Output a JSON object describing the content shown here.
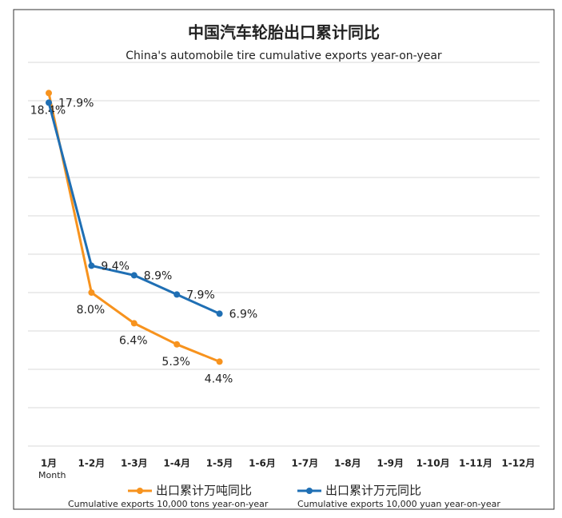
{
  "chart_data": {
    "type": "line",
    "title": "中国汽车轮胎出口累计同比",
    "subtitle": "China's automobile tire cumulative exports year-on-year",
    "x_label": "Month",
    "categories": [
      "1月",
      "1-2月",
      "1-3月",
      "1-4月",
      "1-5月",
      "1-6月",
      "1-7月",
      "1-8月",
      "1-9月",
      "1-10月",
      "1-11月",
      "1-12月"
    ],
    "series": [
      {
        "name": "出口累计万吨同比",
        "subtitle": "Cumulative exports 10,000 tons year-on-year",
        "color": "#f7931e",
        "values": [
          18.4,
          8.0,
          6.4,
          5.3,
          4.4,
          null,
          null,
          null,
          null,
          null,
          null,
          null
        ],
        "value_labels": [
          "18.4%",
          "8.0%",
          "6.4%",
          "5.3%",
          "4.4%",
          null,
          null,
          null,
          null,
          null,
          null,
          null
        ]
      },
      {
        "name": "出口累计万元同比",
        "subtitle": "Cumulative exports 10,000 yuan year-on-year",
        "color": "#1f6fb4",
        "values": [
          17.9,
          9.4,
          8.9,
          7.9,
          6.9,
          null,
          null,
          null,
          null,
          null,
          null,
          null
        ],
        "value_labels": [
          "17.9%",
          "9.4%",
          "8.9%",
          "7.9%",
          "6.9%",
          null,
          null,
          null,
          null,
          null,
          null,
          null
        ]
      }
    ],
    "ylim": [
      0,
      20
    ],
    "yticks": [
      0,
      2,
      4,
      6,
      8,
      10,
      12,
      14,
      16,
      18,
      20
    ],
    "grid": true
  }
}
